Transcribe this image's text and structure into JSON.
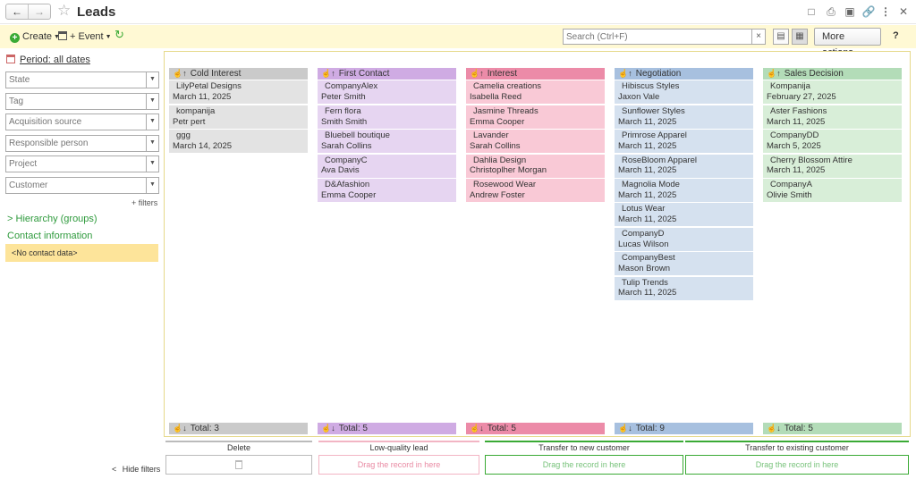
{
  "window": {
    "title": "Leads",
    "back_icon": "arrow-left-icon",
    "forward_icon": "arrow-right-icon"
  },
  "toolbar": {
    "create_label": "Create",
    "event_label": "+ Event",
    "search_placeholder": "Search (Ctrl+F)",
    "search_clear": "×",
    "more_actions_label": "More actions",
    "help_label": "?"
  },
  "sidebar": {
    "period_label": "Period: all dates",
    "filters": [
      {
        "placeholder": "State"
      },
      {
        "placeholder": "Tag"
      },
      {
        "placeholder": "Acquisition source"
      },
      {
        "placeholder": "Responsible person"
      },
      {
        "placeholder": "Project"
      },
      {
        "placeholder": "Customer"
      }
    ],
    "more_filters_label": "+ filters",
    "hierarchy_label": "Hierarchy (groups)",
    "hierarchy_chevron": ">",
    "contact_info_label": "Contact information",
    "no_contact_label": "<No contact data>",
    "hide_filters_label": "Hide filters",
    "hide_chevron": "<"
  },
  "board": {
    "sort_glyph": "☝↑",
    "total_glyph": "☝↓",
    "columns": [
      {
        "title": "Cold Interest",
        "head_color": "#cacaca",
        "card_color": "#e3e3e3",
        "total_label": "Total: 3",
        "cards": [
          {
            "line1": "LilyPetal Designs",
            "line2": "March 11, 2025"
          },
          {
            "line1": "kompanija",
            "line2": "Petr pert"
          },
          {
            "line1": "ggg",
            "line2": "March 14, 2025"
          }
        ]
      },
      {
        "title": "First Contact",
        "head_color": "#cfabe3",
        "card_color": "#e6d5f1",
        "total_label": "Total: 5",
        "cards": [
          {
            "line1": "CompanyAlex",
            "line2": "Peter Smith"
          },
          {
            "line1": "Fern flora",
            "line2": "Smith Smith"
          },
          {
            "line1": "Bluebell boutique",
            "line2": "Sarah Collins"
          },
          {
            "line1": "CompanyC",
            "line2": "Ava Davis"
          },
          {
            "line1": "D&Afashion",
            "line2": "Emma Cooper"
          }
        ]
      },
      {
        "title": "Interest",
        "head_color": "#ec8ba8",
        "card_color": "#f9c9d6",
        "total_label": "Total: 5",
        "cards": [
          {
            "line1": "Camelia creations",
            "line2": "Isabella Reed"
          },
          {
            "line1": "Jasmine Threads",
            "line2": "Emma Cooper"
          },
          {
            "line1": "Lavander",
            "line2": "Sarah Collins"
          },
          {
            "line1": "Dahlia Design",
            "line2": "Christoplher Morgan"
          },
          {
            "line1": "Rosewood Wear",
            "line2": "Andrew Foster"
          }
        ]
      },
      {
        "title": "Negotiation",
        "head_color": "#a7c0df",
        "card_color": "#d5e1ef",
        "total_label": "Total: 9",
        "cards": [
          {
            "line1": "Hibiscus Styles",
            "line2": "Jaxon Vale"
          },
          {
            "line1": "Sunflower Styles",
            "line2": "March 11, 2025"
          },
          {
            "line1": "Primrose Apparel",
            "line2": "March 11, 2025"
          },
          {
            "line1": "RoseBloom Apparel",
            "line2": "March 11, 2025"
          },
          {
            "line1": "Magnolia Mode",
            "line2": "March 11, 2025"
          },
          {
            "line1": "Lotus Wear",
            "line2": "March 11, 2025"
          },
          {
            "line1": "CompanyD",
            "line2": "Lucas Wilson"
          },
          {
            "line1": "CompanyBest",
            "line2": "Mason Brown"
          },
          {
            "line1": "Tulip Trends",
            "line2": "March 11, 2025"
          }
        ]
      },
      {
        "title": "Sales Decision",
        "head_color": "#b3dcb8",
        "card_color": "#d8eed8",
        "total_label": "Total: 5",
        "cards": [
          {
            "line1": "Kompanija",
            "line2": "February 27, 2025"
          },
          {
            "line1": "Aster Fashions",
            "line2": "March 11, 2025"
          },
          {
            "line1": "CompanyDD",
            "line2": "March 5, 2025"
          },
          {
            "line1": "Cherry Blossom Attire",
            "line2": "March 11, 2025"
          },
          {
            "line1": "CompanyA",
            "line2": "Olivie Smith"
          }
        ]
      }
    ]
  },
  "dropzones": [
    {
      "label": "Delete",
      "hint": "",
      "accent": "#bbbbbb",
      "hint_color": "#bbbbbb",
      "icon": "trash-icon"
    },
    {
      "label": "Low-quality lead",
      "hint": "Drag the record in here",
      "accent": "#f2b5c4",
      "hint_color": "#e98aa3",
      "icon": ""
    },
    {
      "label": "Transfer to new customer",
      "hint": "Drag the record in here",
      "accent": "#3aaa35",
      "hint_color": "#77c27a",
      "icon": ""
    },
    {
      "label": "Transfer to existing customer",
      "hint": "Drag the record in here",
      "accent": "#3aaa35",
      "hint_color": "#77c27a",
      "icon": ""
    }
  ]
}
